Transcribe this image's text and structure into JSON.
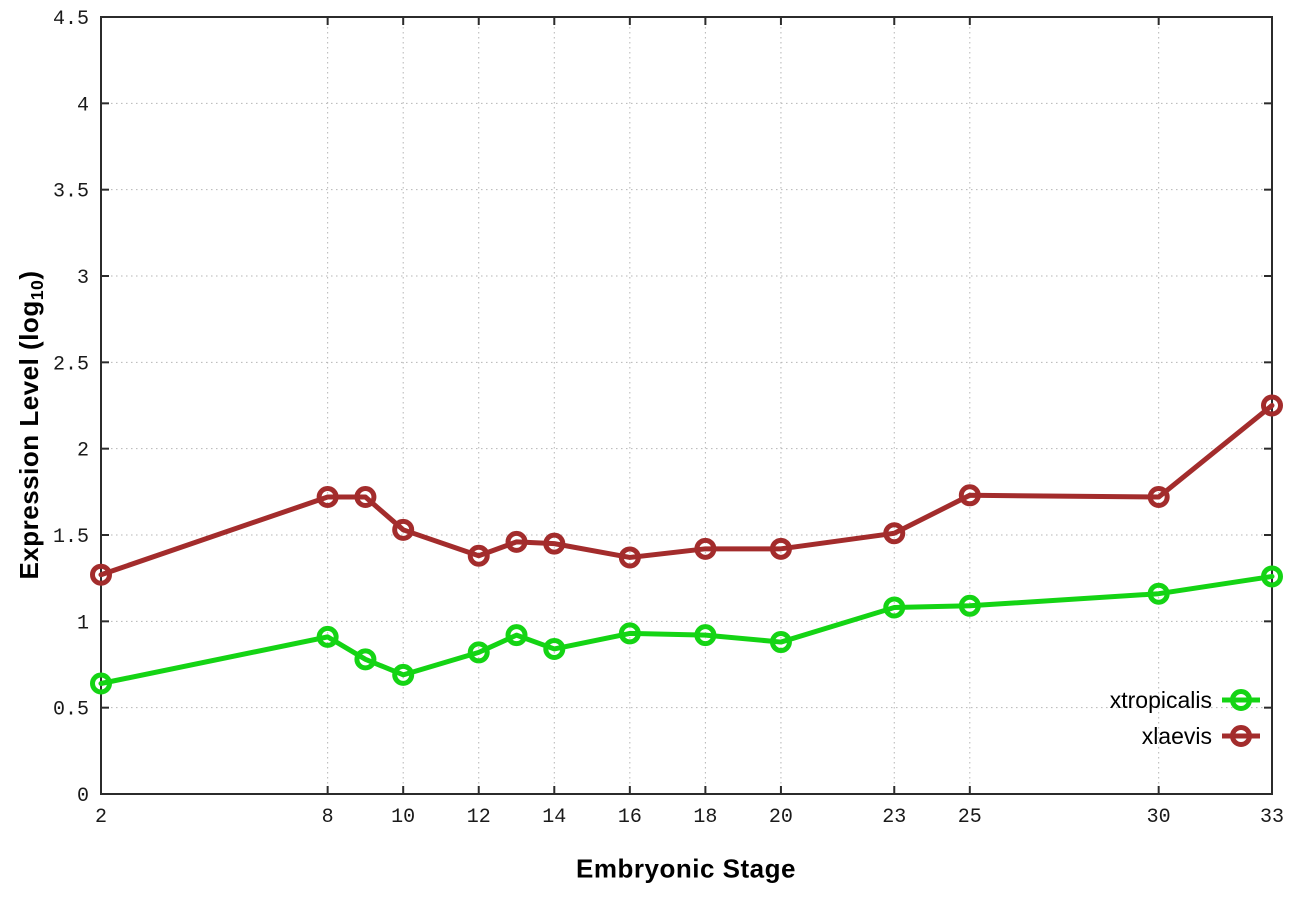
{
  "chart_data": {
    "type": "line",
    "title": "",
    "xlabel": "Embryonic Stage",
    "ylabel": "Expression Level (log10)",
    "ylabel_parts": {
      "main": "Expression Level (log",
      "sub": "10",
      "close": ")"
    },
    "xlim": [
      2,
      33
    ],
    "ylim": [
      0,
      4.5
    ],
    "x_ticks": [
      2,
      8,
      10,
      12,
      14,
      16,
      18,
      20,
      23,
      25,
      30,
      33
    ],
    "y_ticks": [
      0,
      0.5,
      1,
      1.5,
      2,
      2.5,
      3,
      3.5,
      4,
      4.5
    ],
    "y_tick_labels": [
      "0",
      "0.5",
      "1",
      "1.5",
      "2",
      "2.5",
      "3",
      "3.5",
      "4",
      "4.5"
    ],
    "grid": true,
    "legend_position": "inside-bottom-right",
    "x": [
      2,
      8,
      9,
      10,
      12,
      13,
      14,
      16,
      18,
      20,
      23,
      25,
      30,
      33
    ],
    "series": [
      {
        "name": "xtropicalis",
        "color": "#14d414",
        "values": [
          0.64,
          0.91,
          0.78,
          0.69,
          0.82,
          0.92,
          0.84,
          0.93,
          0.92,
          0.88,
          1.08,
          1.09,
          1.16,
          1.26
        ]
      },
      {
        "name": "xlaevis",
        "color": "#a32c2c",
        "values": [
          1.27,
          1.72,
          1.72,
          1.53,
          1.38,
          1.46,
          1.45,
          1.37,
          1.42,
          1.42,
          1.51,
          1.73,
          1.72,
          2.25
        ]
      }
    ],
    "style": {
      "border_color": "#2b2b2b",
      "grid_color": "#b5b5b5",
      "line_width": 5,
      "marker_outer_radius": 11,
      "marker_ring_width": 5
    }
  }
}
